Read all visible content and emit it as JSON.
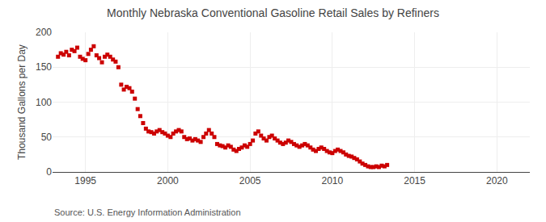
{
  "chart_data": {
    "type": "scatter",
    "title": "Monthly Nebraska Conventional Gasoline Retail Sales by Refiners",
    "ylabel": "Thousand Gallons per Day",
    "annotations": [
      "Source: U.S. Energy Information Administration"
    ],
    "color": "#cc0000",
    "marker": "square",
    "grid": true,
    "xlim": [
      1993,
      2022
    ],
    "ylim": [
      0,
      200
    ],
    "xticks": [
      1995,
      2000,
      2005,
      2010,
      2015,
      2020
    ],
    "yticks": [
      0,
      50,
      100,
      150,
      200
    ],
    "x": [
      1993.33,
      1993.5,
      1993.67,
      1993.83,
      1994.0,
      1994.17,
      1994.33,
      1994.5,
      1994.67,
      1994.83,
      1995.0,
      1995.17,
      1995.33,
      1995.5,
      1995.67,
      1995.83,
      1996.0,
      1996.17,
      1996.33,
      1996.5,
      1996.67,
      1996.83,
      1997.0,
      1997.17,
      1997.33,
      1997.5,
      1997.67,
      1997.83,
      1998.0,
      1998.17,
      1998.33,
      1998.5,
      1998.67,
      1998.83,
      1999.0,
      1999.17,
      1999.33,
      1999.5,
      1999.67,
      1999.83,
      2000.0,
      2000.17,
      2000.33,
      2000.5,
      2000.67,
      2000.83,
      2001.0,
      2001.17,
      2001.33,
      2001.5,
      2001.67,
      2001.83,
      2002.0,
      2002.17,
      2002.33,
      2002.5,
      2002.67,
      2002.83,
      2003.0,
      2003.17,
      2003.33,
      2003.5,
      2003.67,
      2003.83,
      2004.0,
      2004.17,
      2004.33,
      2004.5,
      2004.67,
      2004.83,
      2005.0,
      2005.17,
      2005.33,
      2005.5,
      2005.67,
      2005.83,
      2006.0,
      2006.17,
      2006.33,
      2006.5,
      2006.67,
      2006.83,
      2007.0,
      2007.17,
      2007.33,
      2007.5,
      2007.67,
      2007.83,
      2008.0,
      2008.17,
      2008.33,
      2008.5,
      2008.67,
      2008.83,
      2009.0,
      2009.17,
      2009.33,
      2009.5,
      2009.67,
      2009.83,
      2010.0,
      2010.17,
      2010.33,
      2010.5,
      2010.67,
      2010.83,
      2011.0,
      2011.17,
      2011.33,
      2011.5,
      2011.67,
      2011.83,
      2012.0,
      2012.17,
      2012.33,
      2012.5,
      2012.67,
      2012.83,
      2013.0,
      2013.17,
      2013.33
    ],
    "values": [
      165,
      170,
      168,
      172,
      167,
      175,
      173,
      178,
      165,
      162,
      160,
      169,
      175,
      180,
      167,
      163,
      157,
      165,
      168,
      165,
      161,
      158,
      150,
      125,
      118,
      122,
      120,
      115,
      105,
      90,
      80,
      70,
      62,
      58,
      57,
      55,
      58,
      60,
      57,
      55,
      52,
      50,
      55,
      58,
      60,
      58,
      50,
      47,
      48,
      45,
      47,
      45,
      43,
      50,
      55,
      60,
      55,
      50,
      40,
      38,
      37,
      35,
      38,
      36,
      32,
      30,
      33,
      35,
      38,
      36,
      40,
      45,
      55,
      58,
      52,
      48,
      45,
      50,
      52,
      48,
      45,
      42,
      40,
      42,
      45,
      43,
      40,
      38,
      36,
      38,
      40,
      38,
      35,
      32,
      30,
      33,
      35,
      33,
      30,
      28,
      27,
      30,
      32,
      30,
      28,
      25,
      23,
      22,
      20,
      18,
      15,
      12,
      10,
      8,
      7,
      7,
      8,
      7,
      9,
      8,
      10
    ]
  }
}
